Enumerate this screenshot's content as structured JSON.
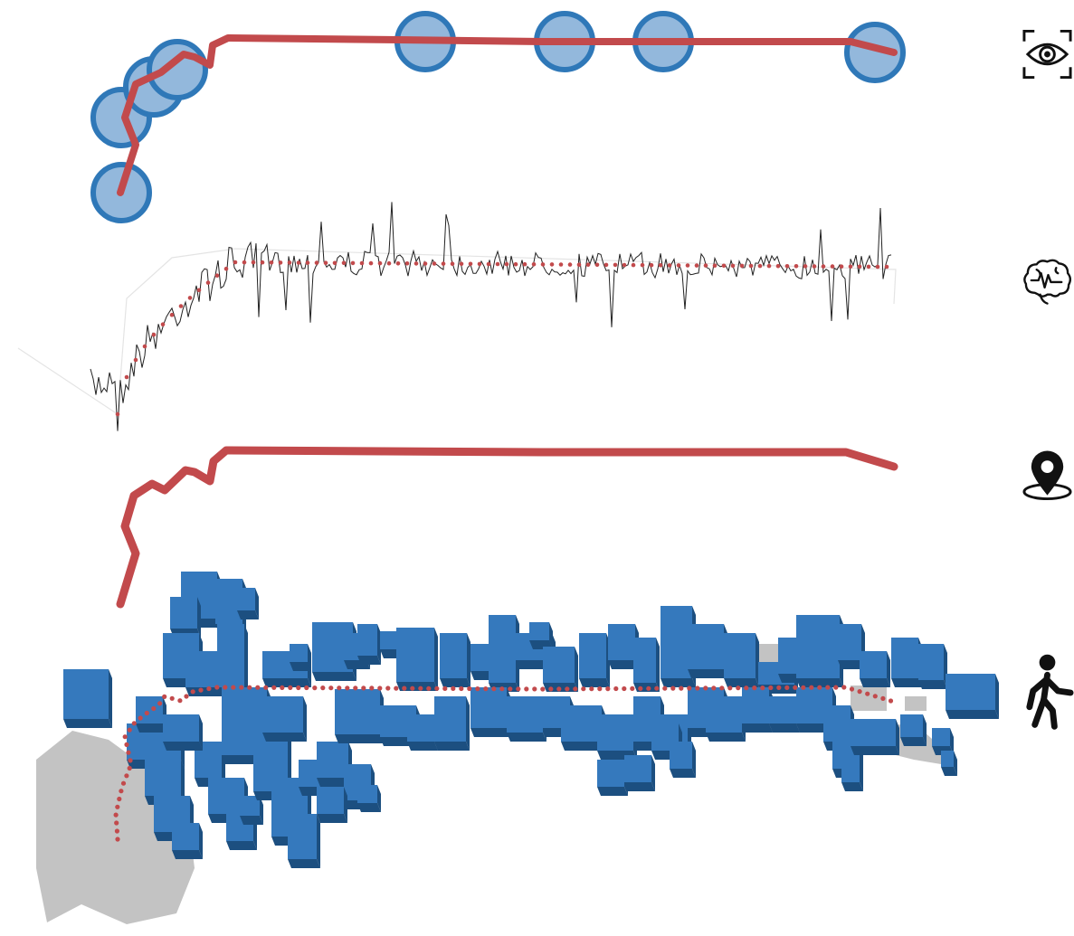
{
  "colors": {
    "route": "#c24a4c",
    "fixation_fill": "#93b8dc",
    "fixation_stroke": "#2f78b8",
    "building_top": "#3579bd",
    "building_side": "#1c4f80",
    "open_space": "#c3c3c3",
    "signal_line": "#222222",
    "signal_trend": "#c24a4c",
    "icon": "#111111"
  },
  "layers": [
    {
      "id": "gaze",
      "icon": "eye-scan-icon"
    },
    {
      "id": "eeg",
      "icon": "brain-pulse-icon"
    },
    {
      "id": "gps",
      "icon": "location-pin-icon"
    },
    {
      "id": "walk",
      "icon": "pedestrian-icon"
    }
  ]
}
